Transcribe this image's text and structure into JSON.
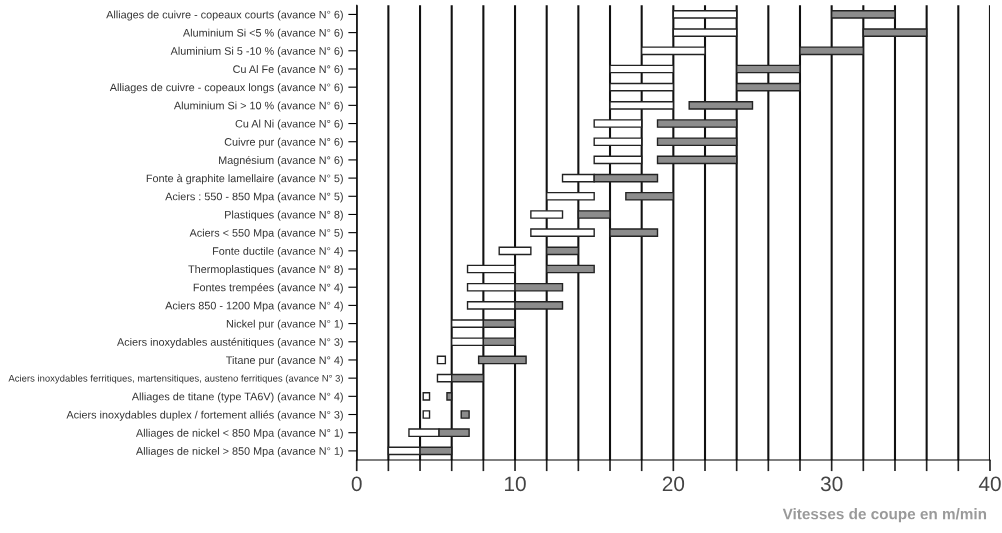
{
  "chart_data": {
    "type": "bar",
    "orientation": "horizontal",
    "categories": [
      "Alliages de cuivre - copeaux courts (avance N° 6)",
      "Aluminium Si <5 % (avance N° 6)",
      "Aluminium Si 5 -10 % (avance N° 6)",
      "Cu Al Fe (avance N° 6)",
      "Alliages de cuivre - copeaux longs (avance N° 6)",
      "Aluminium Si > 10 % (avance N° 6)",
      "Cu Al Ni (avance N° 6)",
      "Cuivre pur (avance N° 6)",
      "Magnésium (avance N° 6)",
      "Fonte à graphite lamellaire (avance N° 5)",
      "Aciers : 550 - 850 Mpa (avance N° 5)",
      "Plastiques (avance N° 8)",
      "Aciers < 550 Mpa (avance N° 5)",
      "Fonte ductile (avance N° 4)",
      "Thermoplastiques (avance N° 8)",
      "Fontes trempées (avance N° 4)",
      "Aciers 850 - 1200 Mpa (avance N° 4)",
      "Nickel pur (avance N° 1)",
      "Aciers inoxydables austénitiques (avance N° 3)",
      "Titane pur (avance N° 4)",
      "Aciers inoxydables ferritiques, martensitiques, austeno ferritiques (avance N° 3)",
      "Alliages de titane (type TA6V) (avance N° 4)",
      "Aciers inoxydables duplex / fortement alliés (avance N° 3)",
      "Alliages de nickel < 850 Mpa (avance N° 1)",
      "Alliages de nickel > 850 Mpa (avance N° 1)"
    ],
    "series": [
      {
        "color": "#ffffff",
        "base": [
          20,
          20,
          18,
          16,
          16,
          16,
          15,
          15,
          15,
          13,
          12,
          11,
          11,
          9,
          7,
          7,
          7,
          6,
          6,
          5.1,
          5.1,
          4.2,
          4.2,
          3.3,
          2
        ],
        "values": [
          4,
          4,
          4,
          4,
          4,
          4,
          3,
          3,
          3,
          2,
          3,
          2,
          4,
          2,
          3,
          3,
          3,
          2,
          2,
          0.5,
          0.9,
          0.4,
          0.4,
          1.9,
          2
        ]
      },
      {
        "color": "#8c8c8c",
        "base": [
          30,
          32,
          28,
          24,
          24,
          21,
          19,
          19,
          19,
          15,
          17,
          14,
          16,
          12,
          12,
          10,
          10,
          8,
          8,
          7.7,
          6,
          5.7,
          6.6,
          5.2,
          4
        ],
        "values": [
          4,
          4,
          4,
          4,
          4,
          4,
          5,
          5,
          5,
          4,
          3,
          2,
          3,
          2,
          3,
          3,
          3,
          2,
          2,
          3,
          2,
          0.3,
          0.5,
          1.9,
          2
        ]
      }
    ],
    "xlim": [
      0,
      40
    ],
    "xticks": [
      0,
      {
        "value": 2,
        "label": null
      },
      {
        "value": 4,
        "label": null
      },
      {
        "value": 6,
        "label": null
      },
      {
        "value": 8,
        "label": null
      },
      10,
      {
        "value": 12,
        "label": null
      },
      {
        "value": 14,
        "label": null
      },
      {
        "value": 16,
        "label": null
      },
      {
        "value": 18,
        "label": null
      },
      20,
      {
        "value": 22,
        "label": null
      },
      {
        "value": 24,
        "label": null
      },
      {
        "value": 26,
        "label": null
      },
      {
        "value": 28,
        "label": null
      },
      30,
      {
        "value": 32,
        "label": null
      },
      {
        "value": 34,
        "label": null
      },
      {
        "value": 36,
        "label": null
      },
      {
        "value": 38,
        "label": null
      },
      40
    ],
    "xlabel": "Vitesses de coupe en m/min",
    "grid": "x"
  }
}
